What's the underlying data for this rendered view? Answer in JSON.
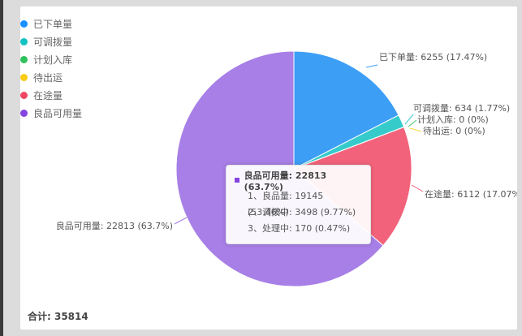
{
  "chart_data": {
    "type": "pie",
    "series": [
      {
        "name": "已下单量",
        "value": 6255,
        "label": "已下单量: 6255 (17.47%)",
        "color": "#3d9ef6"
      },
      {
        "name": "可调拨量",
        "value": 634,
        "label": "可调拨量: 634 (1.77%)",
        "color": "#36cbcb"
      },
      {
        "name": "计划入库",
        "value": 0,
        "label": "计划入库: 0 (0%)",
        "color": "#4ecb73"
      },
      {
        "name": "待出运",
        "value": 0,
        "label": "待出运: 0 (0%)",
        "color": "#fad337"
      },
      {
        "name": "在途量",
        "value": 6112,
        "label": "在途量: 6112 (17.07%)",
        "color": "#f2637b"
      },
      {
        "name": "良品可用量",
        "value": 22813,
        "label": "良品可用量: 22813 (63.7%)",
        "color": "#a77fe6"
      }
    ]
  },
  "legend": {
    "dot_colors": [
      "#1890ff",
      "#13c2c2",
      "#2fc25b",
      "#facc14",
      "#f04864",
      "#8543e0"
    ]
  },
  "tooltip": {
    "title": "良品可用量: 22813 (63.7%)",
    "marker_color": "#8543e0",
    "lines": [
      "1、良品量: 19145 (53.46%)",
      "2、调拨中: 3498 (9.77%)",
      "3、处理中: 170 (0.47%)"
    ]
  },
  "total": {
    "text": "合计: 35814"
  }
}
